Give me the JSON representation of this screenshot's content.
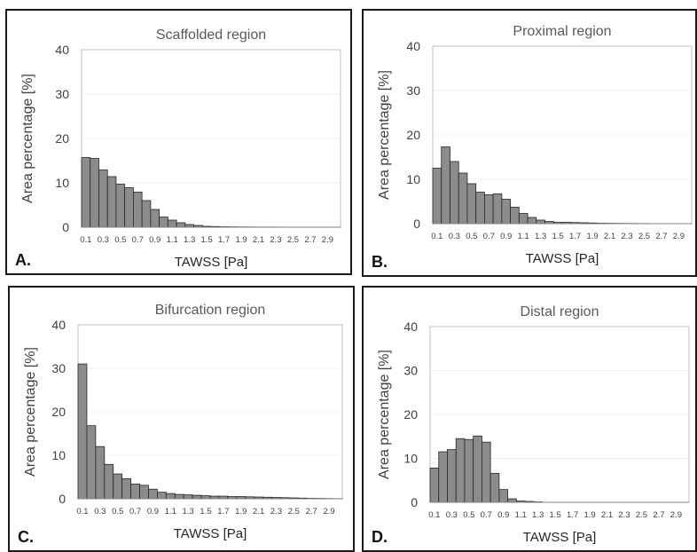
{
  "chart_data": [
    {
      "id": "a",
      "type": "bar",
      "panel_label": "A.",
      "title": "Scaffolded region",
      "xlabel": "TAWSS [Pa]",
      "ylabel": "Area percentage [%]",
      "ylim": [
        0,
        40
      ],
      "yticks": [
        "0",
        "10",
        "20",
        "30",
        "40"
      ],
      "xtick_labels": [
        "0.1",
        "0.3",
        "0.5",
        "0.7",
        "0.9",
        "1.1",
        "1.3",
        "1.5",
        "1.7",
        "1.9",
        "2.1",
        "2.3",
        "2.5",
        "2.7",
        "2.9"
      ],
      "bar_color": "#8c8c8c",
      "values": [
        15.7,
        15.5,
        12.9,
        11.4,
        9.7,
        8.9,
        7.9,
        6.0,
        4.0,
        2.3,
        1.6,
        1.0,
        0.6,
        0.4,
        0.2,
        0.15,
        0.1,
        0.08,
        0.06,
        0.05,
        0.04,
        0.03,
        0.03,
        0.02,
        0.02,
        0.02,
        0.01,
        0.01,
        0.01,
        0.01
      ]
    },
    {
      "id": "b",
      "type": "bar",
      "panel_label": "B.",
      "title": "Proximal region",
      "xlabel": "TAWSS [Pa]",
      "ylabel": "Area percentage [%]",
      "ylim": [
        0,
        40
      ],
      "yticks": [
        "0",
        "10",
        "20",
        "30",
        "40"
      ],
      "xtick_labels": [
        "0.1",
        "0.3",
        "0.5",
        "0.7",
        "0.9",
        "1.1",
        "1.3",
        "1.5",
        "1.7",
        "1.9",
        "2.1",
        "2.3",
        "2.5",
        "2.7",
        "2.9"
      ],
      "bar_color": "#8c8c8c",
      "values": [
        12.5,
        17.3,
        14.0,
        11.4,
        9.0,
        7.1,
        6.5,
        6.7,
        5.5,
        3.7,
        2.3,
        1.4,
        0.8,
        0.5,
        0.3,
        0.3,
        0.25,
        0.2,
        0.15,
        0.1,
        0.08,
        0.06,
        0.05,
        0.04,
        0.03,
        0.02,
        0.02,
        0.01,
        0.01,
        0.01
      ]
    },
    {
      "id": "c",
      "type": "bar",
      "panel_label": "C.",
      "title": "Bifurcation region",
      "xlabel": "TAWSS [Pa]",
      "ylabel": "Area percentage [%]",
      "ylim": [
        0,
        40
      ],
      "yticks": [
        "0",
        "10",
        "20",
        "30",
        "40"
      ],
      "xtick_labels": [
        "0.1",
        "0.3",
        "0.5",
        "0.7",
        "0.9",
        "1.1",
        "1.3",
        "1.5",
        "1.7",
        "1.9",
        "2.1",
        "2.3",
        "2.5",
        "2.7",
        "2.9"
      ],
      "bar_color": "#8c8c8c",
      "values": [
        31.0,
        16.8,
        12.0,
        7.9,
        5.7,
        4.6,
        3.4,
        3.1,
        2.2,
        1.5,
        1.2,
        1.0,
        0.9,
        0.8,
        0.7,
        0.6,
        0.6,
        0.5,
        0.5,
        0.45,
        0.4,
        0.35,
        0.3,
        0.25,
        0.2,
        0.15,
        0.1,
        0.08,
        0.05,
        0.03
      ]
    },
    {
      "id": "d",
      "type": "bar",
      "panel_label": "D.",
      "title": "Distal region",
      "xlabel": "TAWSS [Pa]",
      "ylabel": "Area percentage [%]",
      "ylim": [
        0,
        40
      ],
      "yticks": [
        "0",
        "10",
        "20",
        "30",
        "40"
      ],
      "xtick_labels": [
        "0.1",
        "0.3",
        "0.5",
        "0.7",
        "0.9",
        "1.1",
        "1.3",
        "1.5",
        "1.7",
        "1.9",
        "2.1",
        "2.3",
        "2.5",
        "2.7",
        "2.9"
      ],
      "bar_color": "#8c8c8c",
      "values": [
        7.8,
        11.5,
        12.0,
        14.5,
        14.3,
        15.1,
        13.7,
        6.6,
        2.9,
        0.8,
        0.3,
        0.2,
        0.1,
        0,
        0,
        0,
        0,
        0,
        0,
        0,
        0,
        0,
        0,
        0,
        0,
        0,
        0,
        0,
        0,
        0
      ]
    }
  ]
}
